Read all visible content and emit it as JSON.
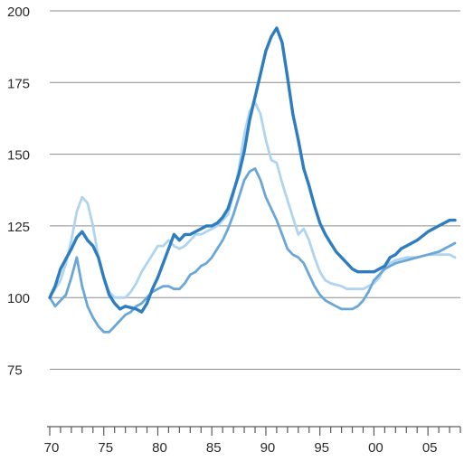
{
  "chart_data": {
    "type": "line",
    "title": "",
    "xlabel": "",
    "ylabel": "",
    "ylim": [
      55,
      200
    ],
    "xlim": [
      1970,
      2008
    ],
    "grid": true,
    "y_ticks": [
      75,
      100,
      125,
      150,
      175,
      200
    ],
    "y_tick_labels": [
      "75",
      "100",
      "125",
      "150",
      "175",
      "200"
    ],
    "x_ticks": [
      1970,
      1975,
      1980,
      1985,
      1990,
      1995,
      2000,
      2005
    ],
    "x_tick_labels": [
      "70",
      "75",
      "80",
      "85",
      "90",
      "95",
      "00",
      "05"
    ],
    "series": [
      {
        "color": "#2e7dc1",
        "stroke_weight": "heavy",
        "points": [
          [
            1970,
            100
          ],
          [
            1970.5,
            104
          ],
          [
            1971,
            110
          ],
          [
            1972,
            117
          ],
          [
            1972.5,
            121
          ],
          [
            1973,
            123
          ],
          [
            1973.5,
            120
          ],
          [
            1974,
            118
          ],
          [
            1974.5,
            114
          ],
          [
            1975,
            107
          ],
          [
            1975.5,
            101
          ],
          [
            1976,
            98
          ],
          [
            1976.5,
            96
          ],
          [
            1977,
            97
          ],
          [
            1978,
            96
          ],
          [
            1978.5,
            95
          ],
          [
            1979,
            98
          ],
          [
            1979.5,
            103
          ],
          [
            1980,
            107
          ],
          [
            1980.5,
            112
          ],
          [
            1981,
            117
          ],
          [
            1981.5,
            122
          ],
          [
            1982,
            120
          ],
          [
            1982.5,
            122
          ],
          [
            1983,
            122
          ],
          [
            1984,
            124
          ],
          [
            1984.5,
            125
          ],
          [
            1985,
            125
          ],
          [
            1985.5,
            126
          ],
          [
            1986,
            128
          ],
          [
            1986.5,
            131
          ],
          [
            1987,
            137
          ],
          [
            1987.5,
            143
          ],
          [
            1988,
            151
          ],
          [
            1988.5,
            162
          ],
          [
            1989,
            170
          ],
          [
            1989.5,
            178
          ],
          [
            1990,
            186
          ],
          [
            1990.5,
            191
          ],
          [
            1991,
            194
          ],
          [
            1991.5,
            189
          ],
          [
            1992,
            177
          ],
          [
            1992.5,
            164
          ],
          [
            1993,
            155
          ],
          [
            1993.5,
            145
          ],
          [
            1994,
            139
          ],
          [
            1994.5,
            132
          ],
          [
            1995,
            126
          ],
          [
            1995.5,
            122
          ],
          [
            1996,
            119
          ],
          [
            1996.5,
            116
          ],
          [
            1997,
            114
          ],
          [
            1997.5,
            112
          ],
          [
            1998,
            110
          ],
          [
            1998.5,
            109
          ],
          [
            1999,
            109
          ],
          [
            2000,
            109
          ],
          [
            2000.5,
            110
          ],
          [
            2001,
            111
          ],
          [
            2001.5,
            114
          ],
          [
            2002,
            115
          ],
          [
            2002.5,
            117
          ],
          [
            2003,
            118
          ],
          [
            2004,
            120
          ],
          [
            2005,
            123
          ],
          [
            2006,
            125
          ],
          [
            2007,
            127
          ],
          [
            2007.5,
            127
          ]
        ]
      },
      {
        "color": "#aed4ef",
        "stroke_weight": "medium",
        "points": [
          [
            1970,
            100
          ],
          [
            1970.5,
            103
          ],
          [
            1971,
            106
          ],
          [
            1971.5,
            112
          ],
          [
            1972,
            120
          ],
          [
            1972.5,
            130
          ],
          [
            1973,
            135
          ],
          [
            1973.5,
            133
          ],
          [
            1974,
            125
          ],
          [
            1974.5,
            114
          ],
          [
            1975,
            107
          ],
          [
            1975.5,
            102
          ],
          [
            1976,
            100
          ],
          [
            1977,
            100
          ],
          [
            1977.5,
            102
          ],
          [
            1978,
            105
          ],
          [
            1978.5,
            109
          ],
          [
            1979,
            112
          ],
          [
            1979.5,
            115
          ],
          [
            1980,
            118
          ],
          [
            1980.5,
            118
          ],
          [
            1981,
            120
          ],
          [
            1981.5,
            118
          ],
          [
            1982,
            117
          ],
          [
            1982.5,
            118
          ],
          [
            1983,
            120
          ],
          [
            1983.5,
            122
          ],
          [
            1984,
            122
          ],
          [
            1984.5,
            123
          ],
          [
            1985,
            124
          ],
          [
            1985.5,
            125
          ],
          [
            1986,
            127
          ],
          [
            1986.5,
            129
          ],
          [
            1987,
            136
          ],
          [
            1987.5,
            145
          ],
          [
            1988,
            157
          ],
          [
            1988.5,
            165
          ],
          [
            1989,
            168
          ],
          [
            1989.5,
            164
          ],
          [
            1990,
            155
          ],
          [
            1990.5,
            148
          ],
          [
            1991,
            147
          ],
          [
            1991.5,
            140
          ],
          [
            1992,
            134
          ],
          [
            1992.5,
            128
          ],
          [
            1993,
            122
          ],
          [
            1993.5,
            124
          ],
          [
            1994,
            120
          ],
          [
            1994.5,
            114
          ],
          [
            1995,
            109
          ],
          [
            1995.5,
            106
          ],
          [
            1996,
            105
          ],
          [
            1997,
            104
          ],
          [
            1997.5,
            103
          ],
          [
            1998,
            103
          ],
          [
            1999,
            103
          ],
          [
            1999.5,
            104
          ],
          [
            2000,
            105
          ],
          [
            2000.5,
            107
          ],
          [
            2001,
            111
          ],
          [
            2001.5,
            112
          ],
          [
            2002,
            113
          ],
          [
            2003,
            114
          ],
          [
            2004,
            114
          ],
          [
            2005,
            115
          ],
          [
            2006,
            115
          ],
          [
            2007,
            115
          ],
          [
            2007.5,
            114
          ]
        ]
      },
      {
        "color": "#6aa7d8",
        "stroke_weight": "medium",
        "points": [
          [
            1970,
            100
          ],
          [
            1970.5,
            97
          ],
          [
            1971,
            99
          ],
          [
            1971.5,
            101
          ],
          [
            1972,
            107
          ],
          [
            1972.5,
            114
          ],
          [
            1973,
            104
          ],
          [
            1973.5,
            97
          ],
          [
            1974,
            93
          ],
          [
            1974.5,
            90
          ],
          [
            1975,
            88
          ],
          [
            1975.5,
            88
          ],
          [
            1976,
            90
          ],
          [
            1976.5,
            92
          ],
          [
            1977,
            94
          ],
          [
            1977.5,
            95
          ],
          [
            1978,
            97
          ],
          [
            1978.5,
            98
          ],
          [
            1979,
            100
          ],
          [
            1979.5,
            102
          ],
          [
            1980,
            103
          ],
          [
            1980.5,
            104
          ],
          [
            1981,
            104
          ],
          [
            1981.5,
            103
          ],
          [
            1982,
            103
          ],
          [
            1982.5,
            105
          ],
          [
            1983,
            108
          ],
          [
            1983.5,
            109
          ],
          [
            1984,
            111
          ],
          [
            1984.5,
            112
          ],
          [
            1985,
            114
          ],
          [
            1985.5,
            117
          ],
          [
            1986,
            120
          ],
          [
            1986.5,
            124
          ],
          [
            1987,
            129
          ],
          [
            1987.5,
            135
          ],
          [
            1988,
            141
          ],
          [
            1988.5,
            144
          ],
          [
            1989,
            145
          ],
          [
            1989.5,
            141
          ],
          [
            1990,
            135
          ],
          [
            1990.5,
            131
          ],
          [
            1991,
            127
          ],
          [
            1991.5,
            122
          ],
          [
            1992,
            117
          ],
          [
            1992.5,
            115
          ],
          [
            1993,
            114
          ],
          [
            1993.5,
            112
          ],
          [
            1994,
            108
          ],
          [
            1994.5,
            104
          ],
          [
            1995,
            101
          ],
          [
            1995.5,
            99
          ],
          [
            1996,
            98
          ],
          [
            1996.5,
            97
          ],
          [
            1997,
            96
          ],
          [
            1997.5,
            96
          ],
          [
            1998,
            96
          ],
          [
            1998.5,
            97
          ],
          [
            1999,
            99
          ],
          [
            1999.5,
            102
          ],
          [
            2000,
            106
          ],
          [
            2000.5,
            108
          ],
          [
            2001,
            110
          ],
          [
            2001.5,
            111
          ],
          [
            2002,
            112
          ],
          [
            2003,
            113
          ],
          [
            2004,
            114
          ],
          [
            2005,
            115
          ],
          [
            2006,
            116
          ],
          [
            2007,
            118
          ],
          [
            2007.5,
            119
          ]
        ]
      }
    ]
  }
}
